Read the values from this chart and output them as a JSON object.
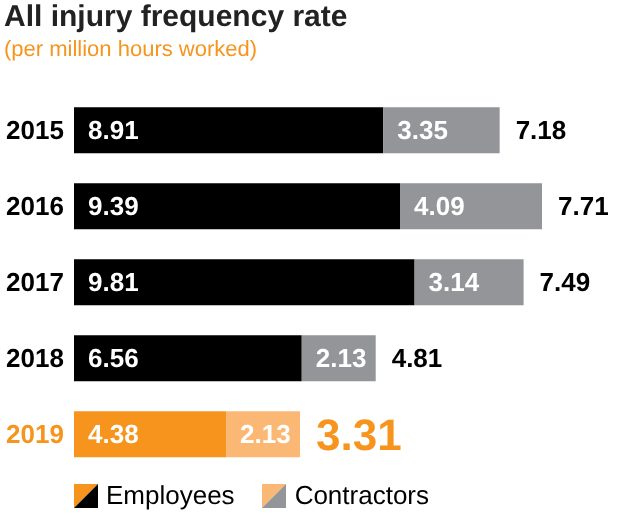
{
  "chart_data": {
    "type": "bar",
    "orientation": "horizontal",
    "stacked": true,
    "title": "All injury frequency rate",
    "subtitle": "(per million hours worked)",
    "categories": [
      "2015",
      "2016",
      "2017",
      "2018",
      "2019"
    ],
    "series": [
      {
        "name": "Employees",
        "colors": [
          "#000000",
          "#000000",
          "#000000",
          "#000000",
          "#f7941d"
        ],
        "values": [
          8.91,
          9.39,
          9.81,
          6.56,
          4.38
        ]
      },
      {
        "name": "Contractors",
        "colors": [
          "#939598",
          "#939598",
          "#939598",
          "#939598",
          "#fbb874"
        ],
        "values": [
          3.35,
          4.09,
          3.14,
          2.13,
          2.13
        ]
      }
    ],
    "annotations": [
      "7.18",
      "7.71",
      "7.49",
      "4.81",
      "3.31"
    ],
    "data_labels": true,
    "legend": "bottom"
  }
}
